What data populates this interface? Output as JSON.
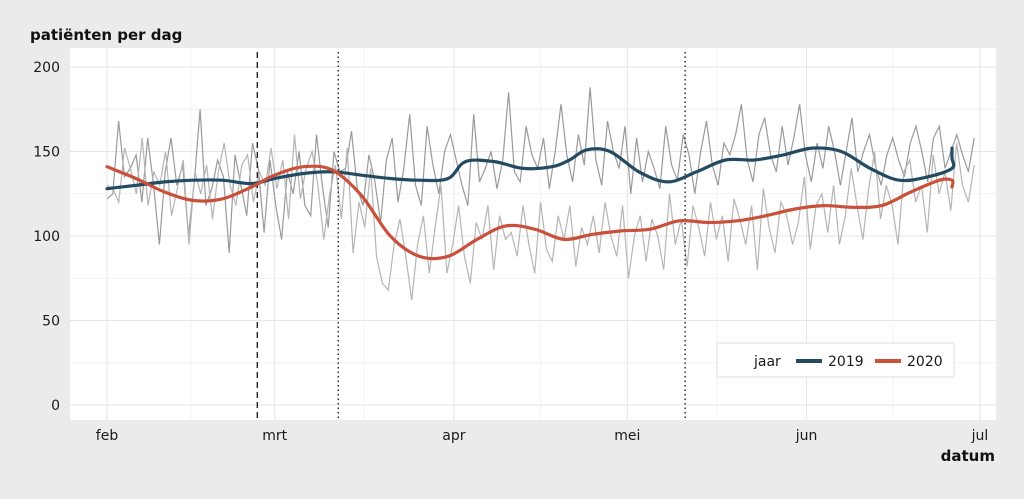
{
  "chart_data": {
    "type": "line",
    "title": "",
    "ylabel": "patiënten per dag",
    "xlabel": "datum",
    "ylim": [
      0,
      200
    ],
    "y_ticks": [
      0,
      50,
      100,
      150,
      200
    ],
    "x_range": [
      "2020-01-28",
      "2020-07-03"
    ],
    "x_ticks": [
      {
        "date": "2020-02-01",
        "label": "feb"
      },
      {
        "date": "2020-03-01",
        "label": "mrt"
      },
      {
        "date": "2020-04-01",
        "label": "apr"
      },
      {
        "date": "2020-05-01",
        "label": "mei"
      },
      {
        "date": "2020-06-01",
        "label": "jun"
      },
      {
        "date": "2020-07-01",
        "label": "jul"
      }
    ],
    "grid": true,
    "vertical_lines": [
      {
        "date": "2020-02-27",
        "style": "dashed"
      },
      {
        "date": "2020-03-12",
        "style": "dotted"
      },
      {
        "date": "2020-05-11",
        "style": "dotted"
      }
    ],
    "legend": {
      "title": "jaar",
      "position": "bottom-right"
    },
    "series": [
      {
        "name": "2019",
        "color": "#234a63",
        "smoothed": [
          [
            "2020-02-01",
            128
          ],
          [
            "2020-02-06",
            130
          ],
          [
            "2020-02-11",
            132
          ],
          [
            "2020-02-16",
            133
          ],
          [
            "2020-02-21",
            133
          ],
          [
            "2020-02-26",
            131
          ],
          [
            "2020-03-01",
            134
          ],
          [
            "2020-03-06",
            137
          ],
          [
            "2020-03-11",
            138
          ],
          [
            "2020-03-16",
            136
          ],
          [
            "2020-03-21",
            134
          ],
          [
            "2020-03-26",
            133
          ],
          [
            "2020-03-31",
            134
          ],
          [
            "2020-04-03",
            144
          ],
          [
            "2020-04-08",
            144
          ],
          [
            "2020-04-13",
            140
          ],
          [
            "2020-04-18",
            141
          ],
          [
            "2020-04-21",
            145
          ],
          [
            "2020-04-24",
            151
          ],
          [
            "2020-04-28",
            150
          ],
          [
            "2020-05-03",
            138
          ],
          [
            "2020-05-08",
            132
          ],
          [
            "2020-05-13",
            138
          ],
          [
            "2020-05-18",
            145
          ],
          [
            "2020-05-23",
            145
          ],
          [
            "2020-05-28",
            148
          ],
          [
            "2020-06-02",
            152
          ],
          [
            "2020-06-07",
            150
          ],
          [
            "2020-06-12",
            140
          ],
          [
            "2020-06-17",
            133
          ],
          [
            "2020-06-22",
            135
          ],
          [
            "2020-06-27",
            140
          ],
          [
            "2020-07-02",
            146
          ],
          [
            "2020-07-07",
            152
          ]
        ]
      },
      {
        "name": "2020",
        "color": "#c9503a",
        "smoothed": [
          [
            "2020-02-01",
            141
          ],
          [
            "2020-02-06",
            134
          ],
          [
            "2020-02-11",
            126
          ],
          [
            "2020-02-16",
            121
          ],
          [
            "2020-02-21",
            122
          ],
          [
            "2020-02-26",
            129
          ],
          [
            "2020-03-01",
            136
          ],
          [
            "2020-03-06",
            141
          ],
          [
            "2020-03-11",
            139
          ],
          [
            "2020-03-16",
            124
          ],
          [
            "2020-03-21",
            100
          ],
          [
            "2020-03-26",
            88
          ],
          [
            "2020-03-31",
            88
          ],
          [
            "2020-04-05",
            98
          ],
          [
            "2020-04-10",
            106
          ],
          [
            "2020-04-15",
            104
          ],
          [
            "2020-04-20",
            98
          ],
          [
            "2020-04-25",
            101
          ],
          [
            "2020-04-30",
            103
          ],
          [
            "2020-05-05",
            104
          ],
          [
            "2020-05-10",
            109
          ],
          [
            "2020-05-15",
            108
          ],
          [
            "2020-05-20",
            109
          ],
          [
            "2020-05-25",
            112
          ],
          [
            "2020-05-30",
            116
          ],
          [
            "2020-06-04",
            118
          ],
          [
            "2020-06-09",
            117
          ],
          [
            "2020-06-14",
            118
          ],
          [
            "2020-06-19",
            126
          ],
          [
            "2020-06-24",
            133
          ],
          [
            "2020-06-29",
            133
          ],
          [
            "2020-07-04",
            129
          ]
        ]
      }
    ],
    "raw_series": [
      {
        "year": "2019",
        "color": "#9a9a9a",
        "values": [
          122,
          125,
          168,
          135,
          140,
          148,
          120,
          158,
          130,
          95,
          138,
          158,
          130,
          142,
          100,
          132,
          175,
          118,
          128,
          145,
          135,
          90,
          148,
          130,
          112,
          155,
          140,
          102,
          145,
          118,
          98,
          138,
          125,
          150,
          118,
          112,
          160,
          130,
          105,
          150,
          138,
          140,
          162,
          128,
          118,
          148,
          133,
          108,
          145,
          158,
          120,
          140,
          172,
          130,
          118,
          165,
          142,
          125,
          150,
          160,
          145,
          130,
          118,
          172,
          132,
          140,
          150,
          128,
          145,
          185,
          138,
          132,
          165,
          148,
          140,
          158,
          128,
          150,
          178,
          148,
          132,
          160,
          142,
          188,
          145,
          130,
          168,
          150,
          140,
          165,
          125,
          158,
          132,
          150,
          140,
          128,
          165,
          142,
          133,
          160,
          148,
          125,
          150,
          168,
          142,
          130,
          155,
          148,
          160,
          178,
          145,
          132,
          160,
          170,
          148,
          138,
          165,
          142,
          158,
          178,
          148,
          132,
          155,
          140,
          165,
          150,
          130,
          150,
          170,
          138,
          150,
          160,
          142,
          130,
          148,
          158,
          145,
          135,
          155,
          165,
          150,
          132,
          158,
          165,
          140,
          150,
          160,
          148,
          138,
          158
        ]
      },
      {
        "year": "2020",
        "color": "#b5b5b5",
        "values": [
          130,
          128,
          120,
          152,
          140,
          125,
          158,
          118,
          138,
          130,
          150,
          112,
          128,
          145,
          95,
          138,
          125,
          142,
          110,
          138,
          155,
          130,
          118,
          142,
          148,
          120,
          138,
          130,
          152,
          128,
          145,
          110,
          160,
          122,
          140,
          150,
          130,
          98,
          125,
          142,
          110,
          152,
          90,
          120,
          105,
          140,
          88,
          72,
          68,
          95,
          110,
          88,
          62,
          95,
          112,
          78,
          105,
          130,
          78,
          95,
          118,
          88,
          72,
          108,
          98,
          118,
          80,
          112,
          98,
          102,
          88,
          118,
          95,
          78,
          120,
          92,
          85,
          112,
          98,
          118,
          82,
          105,
          95,
          112,
          90,
          120,
          100,
          88,
          118,
          75,
          100,
          112,
          85,
          110,
          100,
          80,
          125,
          95,
          110,
          82,
          118,
          105,
          88,
          120,
          98,
          112,
          85,
          122,
          110,
          95,
          118,
          80,
          128,
          105,
          90,
          120,
          112,
          95,
          108,
          135,
          92,
          118,
          125,
          102,
          130,
          95,
          112,
          140,
          118,
          98,
          128,
          150,
          110,
          130,
          118,
          95,
          138,
          145,
          120,
          130,
          102,
          148,
          125,
          138,
          115,
          155,
          130,
          120,
          142
        ]
      }
    ]
  }
}
